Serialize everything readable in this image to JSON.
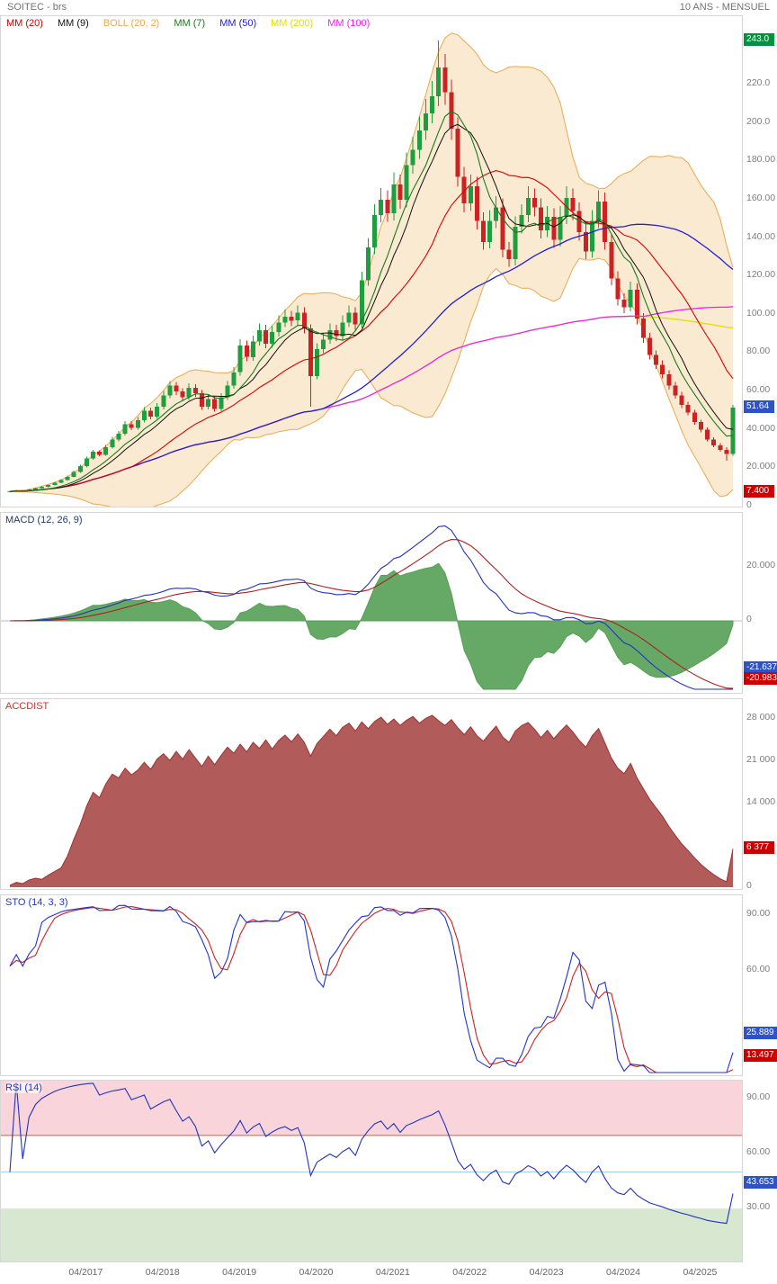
{
  "header": {
    "title": "SOITEC - brs",
    "timeframe": "10 ANS - MENSUEL"
  },
  "legend": {
    "items": [
      {
        "id": "mm20",
        "label": "MM (20)",
        "color": "#cc0000"
      },
      {
        "id": "mm9",
        "label": "MM (9)",
        "color": "#111111"
      },
      {
        "id": "boll",
        "label": "BOLL (20, 2)",
        "color": "#eda94e"
      },
      {
        "id": "mm7",
        "label": "MM (7)",
        "color": "#1a7a1a"
      },
      {
        "id": "mm50",
        "label": "MM (50)",
        "color": "#2222cc"
      },
      {
        "id": "mm200",
        "label": "MM (200)",
        "color": "#e0e000"
      },
      {
        "id": "mm100",
        "label": "MM (100)",
        "color": "#ee22ee"
      }
    ]
  },
  "colors": {
    "up": "#1f9e3f",
    "down": "#cc2222",
    "mm20": "#dd0000",
    "mm9": "#111111",
    "mm7": "#1a7a1a",
    "mm50": "#2222cc",
    "mm200": "#e0e000",
    "mm100": "#ee22ee",
    "boll_line": "#eaa94f",
    "boll_fill": "#f5d9ad",
    "macd_line": "#2233bb",
    "macd_signal": "#aa2222",
    "macd_hist": "#55a055",
    "accdist": "#b25b5b",
    "accdist_line": "#9e3232",
    "sto_k": "#2233cc",
    "sto_d": "#cc2222",
    "rsi_line": "#2233bb",
    "rsi_overbought_zone": "#f9d5db",
    "rsi_oversold_zone": "#d8e7cf",
    "rsi_70_line": "#dd5555",
    "rsi_50_line": "#a8d0ea",
    "badge_green": "#00933f",
    "badge_blue": "#2e52c8",
    "badge_red": "#cc0000",
    "axis_text": "#7e7e7e",
    "border": "#d6d6d6"
  },
  "panels": {
    "price": {
      "ticks": [
        {
          "label": "220.0",
          "value": 220
        },
        {
          "label": "200.0",
          "value": 200
        },
        {
          "label": "180.00",
          "value": 180
        },
        {
          "label": "160.00",
          "value": 160
        },
        {
          "label": "140.00",
          "value": 140
        },
        {
          "label": "120.00",
          "value": 120
        },
        {
          "label": "100.00",
          "value": 100
        },
        {
          "label": "80.00",
          "value": 80
        },
        {
          "label": "60.00",
          "value": 60
        },
        {
          "label": "40.000",
          "value": 40
        },
        {
          "label": "20.000",
          "value": 20
        },
        {
          "label": "0",
          "value": 0
        }
      ],
      "badges": [
        {
          "name": "period-high-badge",
          "label": "243.0",
          "value": 243.0,
          "color_key": "badge_green"
        },
        {
          "name": "last-price-badge",
          "label": "51.64",
          "value": 51.64,
          "color_key": "badge_blue"
        },
        {
          "name": "period-low-badge",
          "label": "7.400",
          "value": 7.4,
          "color_key": "badge_red"
        }
      ]
    },
    "macd": {
      "title": "MACD (12, 26, 9)",
      "title_color": "#223a66",
      "ticks": [
        {
          "label": "20.000",
          "value": 20
        },
        {
          "label": "0",
          "value": 0
        },
        {
          "label": "-20.000",
          "value": -20
        }
      ],
      "badges": [
        {
          "name": "macd-value-badge",
          "label": "-21.637",
          "value": -21.637,
          "color_key": "badge_blue"
        },
        {
          "name": "macd-signal-badge",
          "label": "-20.983",
          "value": -20.983,
          "color_key": "badge_red"
        }
      ]
    },
    "accdist": {
      "title": "ACCDIST",
      "title_color": "#cc3333",
      "ticks": [
        {
          "label": "28 000",
          "value": 28000
        },
        {
          "label": "21 000",
          "value": 21000
        },
        {
          "label": "14 000",
          "value": 14000
        },
        {
          "label": "0",
          "value": 0
        }
      ],
      "badges": [
        {
          "name": "accdist-value-badge",
          "label": "6 377",
          "value": 6377,
          "color_key": "badge_red"
        }
      ]
    },
    "sto": {
      "title": "STO (14, 3, 3)",
      "title_color": "#2236c8",
      "ticks": [
        {
          "label": "90.00",
          "value": 90
        },
        {
          "label": "60.00",
          "value": 60
        }
      ],
      "badges": [
        {
          "name": "sto-k-badge",
          "label": "25.889",
          "value": 25.889,
          "color_key": "badge_blue"
        },
        {
          "name": "sto-d-badge",
          "label": "13.497",
          "value": 13.497,
          "color_key": "badge_red"
        }
      ]
    },
    "rsi": {
      "title": "RSI (14)",
      "title_color": "#2236c8",
      "ticks": [
        {
          "label": "90.00",
          "value": 90
        },
        {
          "label": "60.00",
          "value": 60
        },
        {
          "label": "30.00",
          "value": 30
        }
      ],
      "badges": [
        {
          "name": "rsi-value-badge",
          "label": "43.653",
          "value": 43.653,
          "color_key": "badge_blue"
        }
      ]
    }
  },
  "x_axis": {
    "labels": [
      {
        "label": "04/2017",
        "month_index": 12
      },
      {
        "label": "04/2018",
        "month_index": 24
      },
      {
        "label": "04/2019",
        "month_index": 36
      },
      {
        "label": "04/2020",
        "month_index": 48
      },
      {
        "label": "04/2021",
        "month_index": 60
      },
      {
        "label": "04/2022",
        "month_index": 72
      },
      {
        "label": "04/2023",
        "month_index": 84
      },
      {
        "label": "04/2024",
        "month_index": 96
      },
      {
        "label": "04/2025",
        "month_index": 108
      }
    ]
  },
  "chart_data": {
    "type": "candlestick-multi-panel",
    "title": "SOITEC - brs",
    "timeframe": "10 ANS - MENSUEL",
    "x_unit": "month",
    "start_month": "04/2016",
    "months_count": 114,
    "grid": false,
    "legend_position": "top-left",
    "price": {
      "ylim": [
        0,
        255
      ],
      "last_close": 51.64,
      "period_high": 243.0,
      "period_low": 7.4,
      "overlays": [
        "MM(20)",
        "MM(9)",
        "MM(7)",
        "MM(50)",
        "MM(100)",
        "MM(200)",
        "BOLL(20,2)"
      ],
      "ohlc": [
        [
          7.6,
          8.2,
          7.4,
          7.9
        ],
        [
          7.9,
          8.6,
          7.7,
          8.3
        ],
        [
          8.3,
          8.6,
          7.8,
          8.0
        ],
        [
          8.0,
          9.1,
          7.9,
          8.8
        ],
        [
          8.8,
          9.9,
          8.6,
          9.6
        ],
        [
          9.6,
          10.8,
          9.4,
          10.4
        ],
        [
          10.4,
          11.6,
          10.2,
          11.2
        ],
        [
          11.2,
          12.8,
          11.0,
          12.4
        ],
        [
          12.4,
          14.3,
          12.2,
          13.8
        ],
        [
          13.8,
          16.1,
          13.5,
          15.5
        ],
        [
          15.5,
          18.7,
          15.2,
          18.0
        ],
        [
          18.0,
          21.8,
          17.6,
          21.0
        ],
        [
          21.0,
          26.0,
          20.5,
          25.0
        ],
        [
          25.0,
          29.6,
          24.4,
          28.5
        ],
        [
          28.5,
          29.3,
          26.2,
          27.0
        ],
        [
          27.0,
          32.2,
          26.4,
          31.0
        ],
        [
          31.0,
          36.3,
          30.2,
          35.0
        ],
        [
          35.0,
          39.4,
          34.1,
          38.0
        ],
        [
          38.0,
          44.6,
          37.1,
          43.0
        ],
        [
          43.0,
          44.5,
          39.8,
          41.0
        ],
        [
          41.0,
          46.7,
          40.0,
          45.0
        ],
        [
          45.0,
          51.9,
          43.9,
          50.0
        ],
        [
          50.0,
          51.5,
          45.6,
          47.0
        ],
        [
          47.0,
          53.9,
          45.8,
          52.0
        ],
        [
          52.0,
          60.2,
          50.7,
          58.0
        ],
        [
          58.0,
          65.4,
          56.6,
          63.0
        ],
        [
          63.0,
          64.9,
          58.2,
          60.0
        ],
        [
          60.0,
          61.8,
          55.3,
          57.0
        ],
        [
          57.0,
          64.3,
          55.6,
          62.0
        ],
        [
          62.0,
          63.9,
          57.2,
          59.0
        ],
        [
          59.0,
          60.8,
          50.4,
          52.0
        ],
        [
          52.0,
          58.1,
          50.7,
          56.0
        ],
        [
          56.0,
          57.7,
          49.5,
          51.0
        ],
        [
          51.0,
          59.1,
          49.7,
          57.0
        ],
        [
          57.0,
          65.4,
          55.6,
          63.0
        ],
        [
          63.0,
          72.6,
          61.4,
          70.0
        ],
        [
          70.0,
          87.2,
          68.3,
          84.0
        ],
        [
          84.0,
          86.5,
          75.7,
          78.0
        ],
        [
          78.0,
          89.2,
          76.1,
          86.0
        ],
        [
          86.0,
          95.4,
          83.9,
          92.0
        ],
        [
          92.0,
          94.8,
          82.5,
          85.0
        ],
        [
          85.0,
          94.4,
          82.9,
          91.0
        ],
        [
          91.0,
          99.6,
          88.7,
          96.0
        ],
        [
          96.0,
          102.7,
          93.6,
          99.0
        ],
        [
          99.0,
          102.0,
          94.1,
          97.0
        ],
        [
          97.0,
          104.8,
          94.6,
          101.0
        ],
        [
          101.0,
          104.0,
          90.2,
          93.0
        ],
        [
          93.0,
          94.9,
          52.0,
          68.0
        ],
        [
          68.0,
          85.1,
          66.3,
          82.0
        ],
        [
          82.0,
          90.2,
          80.0,
          87.0
        ],
        [
          87.0,
          95.4,
          84.8,
          92.0
        ],
        [
          92.0,
          94.8,
          86.3,
          89.0
        ],
        [
          89.0,
          99.6,
          86.8,
          96.0
        ],
        [
          96.0,
          104.8,
          93.6,
          101.0
        ],
        [
          101.0,
          104.0,
          92.2,
          95.0
        ],
        [
          95.0,
          122.4,
          93.1,
          118.0
        ],
        [
          118.0,
          140.0,
          115.1,
          135.0
        ],
        [
          135.0,
          157.7,
          131.6,
          152.0
        ],
        [
          152.0,
          166.0,
          148.2,
          160.0
        ],
        [
          160.0,
          164.8,
          148.4,
          153.0
        ],
        [
          153.0,
          174.3,
          149.2,
          168.0
        ],
        [
          168.0,
          173.0,
          155.2,
          160.0
        ],
        [
          160.0,
          184.6,
          156.0,
          178.0
        ],
        [
          178.0,
          192.9,
          173.6,
          186.0
        ],
        [
          186.0,
          203.3,
          181.4,
          196.0
        ],
        [
          196.0,
          212.6,
          191.1,
          205.0
        ],
        [
          205.0,
          222.0,
          199.9,
          214.0
        ],
        [
          214.0,
          243.0,
          208.7,
          229.0
        ],
        [
          229.0,
          236.0,
          209.5,
          216.0
        ],
        [
          216.0,
          222.5,
          191.1,
          197.0
        ],
        [
          197.0,
          202.9,
          166.8,
          172.0
        ],
        [
          172.0,
          177.2,
          153.3,
          158.0
        ],
        [
          158.0,
          173.2,
          154.1,
          167.0
        ],
        [
          167.0,
          172.0,
          144.5,
          149.0
        ],
        [
          149.0,
          153.5,
          133.9,
          138.0
        ],
        [
          138.0,
          154.5,
          134.6,
          149.0
        ],
        [
          149.0,
          161.8,
          145.3,
          156.0
        ],
        [
          156.0,
          160.7,
          130.0,
          134.0
        ],
        [
          134.0,
          138.0,
          125.1,
          129.0
        ],
        [
          129.0,
          151.4,
          125.8,
          146.0
        ],
        [
          146.0,
          157.6,
          142.3,
          152.0
        ],
        [
          152.0,
          167.0,
          148.2,
          161.0
        ],
        [
          161.0,
          165.8,
          151.3,
          156.0
        ],
        [
          156.0,
          160.7,
          139.7,
          144.0
        ],
        [
          144.0,
          156.6,
          140.4,
          151.0
        ],
        [
          151.0,
          155.5,
          134.8,
          139.0
        ],
        [
          139.0,
          156.6,
          135.5,
          151.0
        ],
        [
          151.0,
          167.0,
          147.2,
          161.0
        ],
        [
          161.0,
          165.8,
          149.4,
          154.0
        ],
        [
          154.0,
          158.6,
          138.7,
          143.0
        ],
        [
          143.0,
          147.3,
          129.0,
          133.0
        ],
        [
          133.0,
          154.5,
          129.7,
          149.0
        ],
        [
          149.0,
          164.9,
          145.3,
          159.0
        ],
        [
          159.0,
          163.8,
          133.9,
          138.0
        ],
        [
          138.0,
          142.1,
          115.4,
          119.0
        ],
        [
          119.0,
          122.6,
          104.8,
          108.0
        ],
        [
          108.0,
          111.2,
          100.9,
          104.0
        ],
        [
          104.0,
          117.2,
          101.9,
          113.0
        ],
        [
          113.0,
          116.4,
          95.1,
          98.0
        ],
        [
          98.0,
          100.9,
          85.4,
          88.0
        ],
        [
          88.0,
          90.6,
          76.6,
          79.0
        ],
        [
          79.0,
          81.3,
          71.8,
          74.0
        ],
        [
          74.0,
          76.2,
          66.9,
          69.0
        ],
        [
          69.0,
          71.1,
          61.1,
          63.0
        ],
        [
          63.0,
          64.9,
          56.3,
          58.0
        ],
        [
          58.0,
          59.7,
          51.4,
          53.0
        ],
        [
          53.0,
          54.6,
          47.5,
          49.0
        ],
        [
          49.0,
          50.5,
          42.7,
          44.0
        ],
        [
          44.0,
          45.3,
          38.8,
          40.0
        ],
        [
          40.0,
          41.2,
          34.0,
          35.0
        ],
        [
          35.0,
          36.1,
          31.0,
          32.0
        ],
        [
          32.0,
          33.0,
          28.6,
          29.5
        ],
        [
          29.5,
          31.0,
          24.0,
          27.5
        ],
        [
          27.5,
          53.0,
          26.5,
          51.64
        ]
      ]
    },
    "macd": {
      "params": [
        12,
        26,
        9
      ],
      "current": {
        "macd": -21.637,
        "signal": -20.983
      },
      "ylim": [
        -40,
        45
      ]
    },
    "accdist": {
      "current": 6377,
      "ylim": [
        0,
        28000
      ],
      "values": [
        300,
        800,
        600,
        1200,
        1500,
        1300,
        2000,
        2600,
        3200,
        5200,
        8000,
        10500,
        13500,
        15800,
        14900,
        17200,
        18800,
        18200,
        19800,
        18700,
        19500,
        20800,
        19600,
        21300,
        22200,
        21100,
        22600,
        21300,
        22900,
        21500,
        20100,
        21800,
        20400,
        21900,
        23300,
        22300,
        23800,
        22500,
        24100,
        23100,
        24500,
        23000,
        24400,
        25300,
        24200,
        25500,
        24100,
        21800,
        23900,
        25100,
        26300,
        25200,
        26600,
        27300,
        26000,
        27500,
        26400,
        27600,
        28300,
        27100,
        28000,
        26900,
        27800,
        28400,
        27300,
        28100,
        28600,
        27700,
        26900,
        27900,
        26500,
        25400,
        26700,
        25200,
        24300,
        25600,
        26800,
        25000,
        24100,
        26000,
        26900,
        27400,
        26300,
        24900,
        26100,
        24700,
        25900,
        27000,
        25800,
        24400,
        23300,
        25200,
        26400,
        24000,
        21500,
        19800,
        18900,
        20600,
        18200,
        16400,
        14600,
        13200,
        11800,
        10100,
        8600,
        7200,
        6100,
        4900,
        3800,
        2900,
        2100,
        1400,
        900,
        6377
      ]
    },
    "sto": {
      "params": [
        14,
        3,
        3
      ],
      "current": {
        "k": 25.889,
        "d": 13.497
      },
      "ylim": [
        0,
        100
      ]
    },
    "rsi": {
      "params": [
        14
      ],
      "current": 43.653,
      "ylim": [
        0,
        100
      ],
      "overbought": 70,
      "oversold": 30
    }
  }
}
